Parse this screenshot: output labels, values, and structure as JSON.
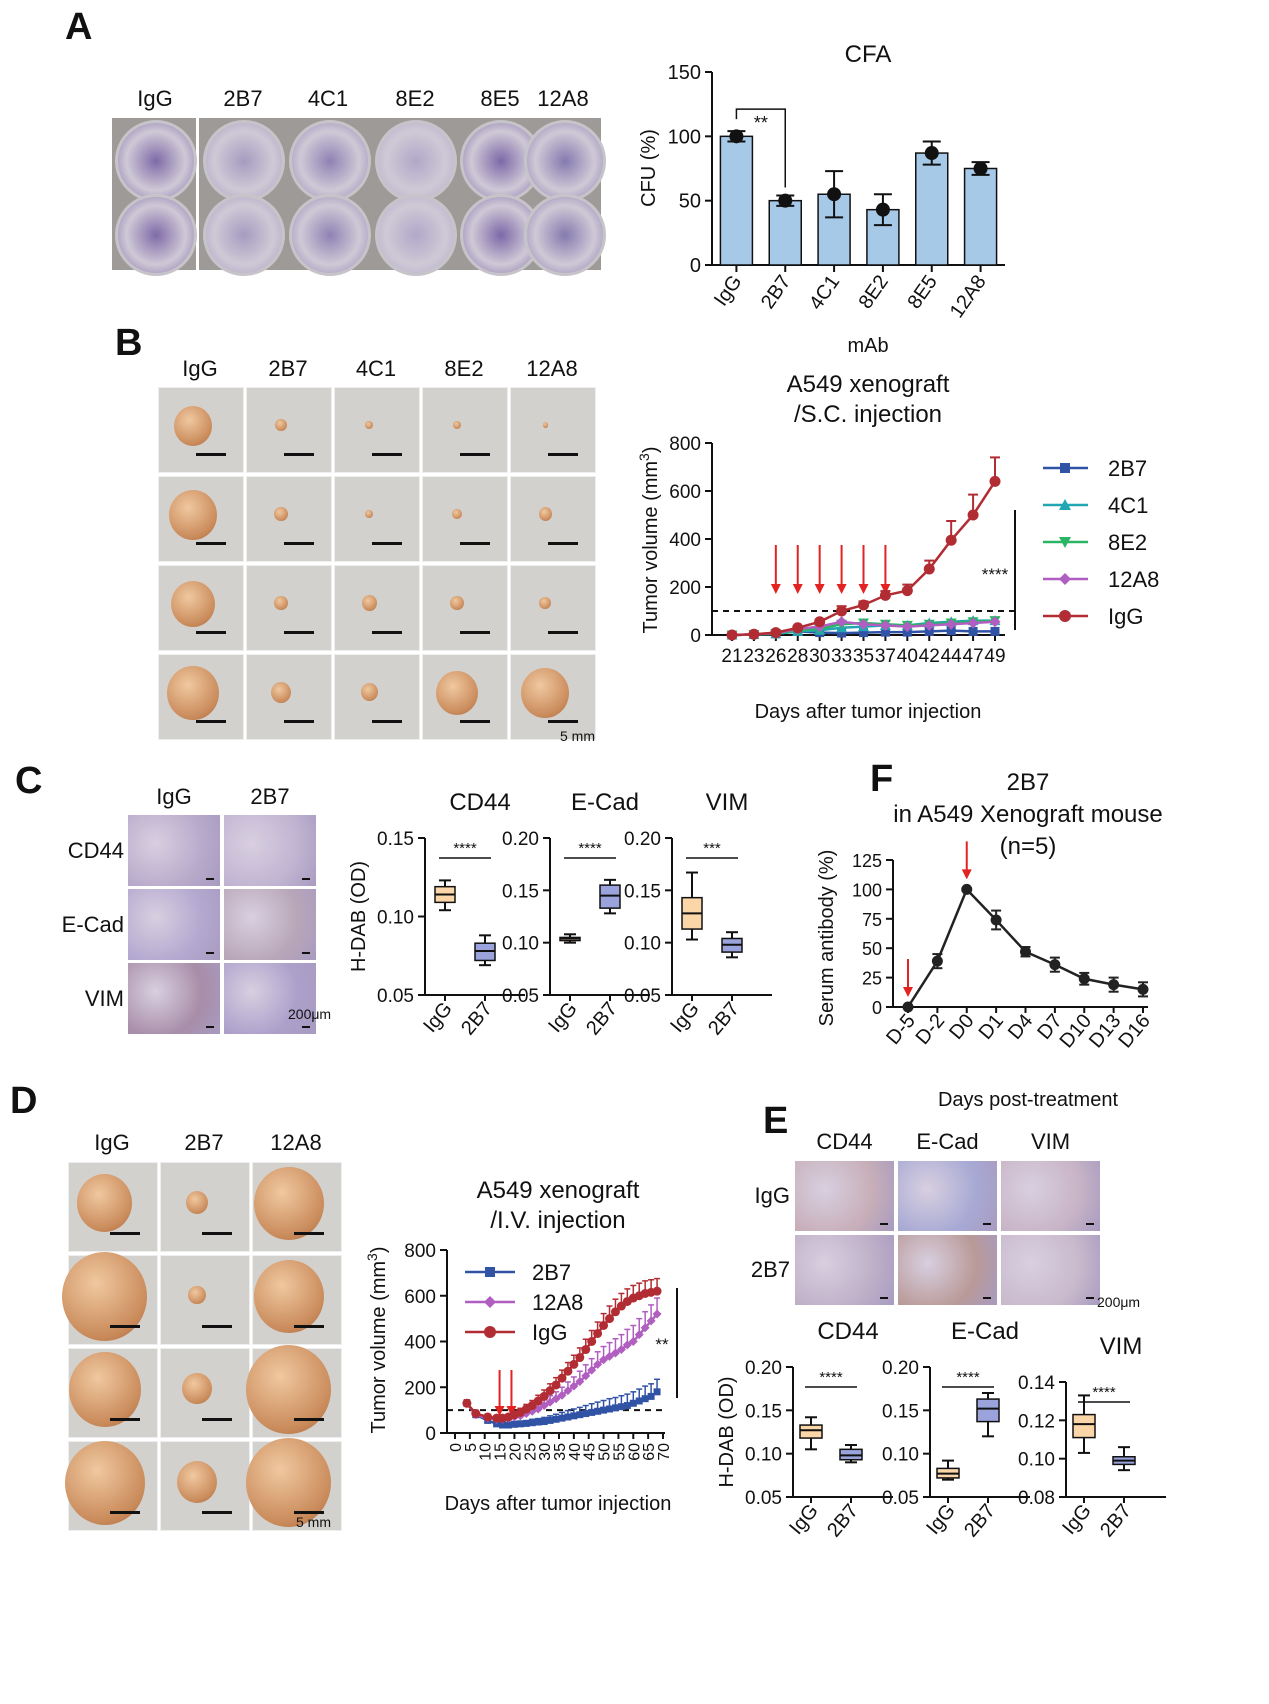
{
  "panels": {
    "A": "A",
    "B": "B",
    "C": "C",
    "D": "D",
    "E": "E",
    "F": "F"
  },
  "panelA": {
    "plate_labels": [
      "IgG",
      "2B7",
      "4C1",
      "8E2",
      "8E5",
      "12A8"
    ],
    "well_colors": [
      "#7f6aa8",
      "#a69cc0",
      "#8f82b4",
      "#b1a8c8",
      "#7c68a8",
      "#857aaf"
    ]
  },
  "panelB": {
    "column_labels": [
      "IgG",
      "2B7",
      "4C1",
      "8E2",
      "12A8"
    ],
    "scale_label": "5 mm",
    "tumor_sizes": [
      [
        38,
        12,
        8,
        8,
        5
      ],
      [
        48,
        14,
        8,
        10,
        13
      ],
      [
        44,
        14,
        15,
        14,
        12
      ],
      [
        52,
        20,
        17,
        42,
        48
      ]
    ]
  },
  "panelC": {
    "column_labels": [
      "IgG",
      "2B7"
    ],
    "row_labels": [
      "CD44",
      "E-Cad",
      "VIM"
    ],
    "scale_label": "200μm"
  },
  "panelD": {
    "column_labels": [
      "IgG",
      "2B7",
      "12A8"
    ],
    "scale_label": "5 mm",
    "tumor_sizes": [
      [
        55,
        22,
        70
      ],
      [
        85,
        18,
        70
      ],
      [
        72,
        30,
        85
      ],
      [
        80,
        40,
        85
      ]
    ]
  },
  "panelE": {
    "column_labels": [
      "CD44",
      "E-Cad",
      "VIM"
    ],
    "row_labels": [
      "IgG",
      "2B7"
    ],
    "scale_label": "200μm"
  },
  "chart_data": [
    {
      "id": "cfa",
      "type": "bar",
      "title": "CFA",
      "xlabel": "mAb",
      "ylabel": "CFU (%)",
      "categories": [
        "IgG",
        "2B7",
        "4C1",
        "8E2",
        "8E5",
        "12A8"
      ],
      "values": [
        100,
        50,
        55,
        43,
        87,
        75
      ],
      "errors": [
        4,
        4,
        18,
        12,
        9,
        5
      ],
      "ylim": [
        0,
        150
      ],
      "yticks": [
        0,
        50,
        100,
        150
      ],
      "bar_color": "#a7c9e8",
      "annotation": {
        "text": "**",
        "between": [
          "IgG",
          "2B7"
        ]
      }
    },
    {
      "id": "sc",
      "type": "line",
      "title": "A549 xenograft\n/S.C. injection",
      "title_lines": [
        "A549 xenograft",
        "/S.C. injection"
      ],
      "xlabel": "Days after tumor injection",
      "ylabel": "Tumor volume (mm",
      "ylabel_sup": "3",
      "ylabel_end": ")",
      "x": [
        "21",
        "23",
        "26",
        "28",
        "30",
        "33",
        "35",
        "37",
        "40",
        "42",
        "44",
        "47",
        "49"
      ],
      "ylim": [
        0,
        800
      ],
      "yticks": [
        0,
        200,
        400,
        600,
        800
      ],
      "dashed_line": 100,
      "arrows_at": [
        "26",
        "28",
        "30",
        "33",
        "35",
        "37"
      ],
      "significance": "****",
      "series": [
        {
          "name": "2B7",
          "color": "#3153a6",
          "marker": "square",
          "values": [
            0,
            2,
            5,
            15,
            10,
            8,
            10,
            12,
            12,
            15,
            18,
            15,
            15
          ]
        },
        {
          "name": "4C1",
          "color": "#22a6b3",
          "marker": "triangle",
          "values": [
            0,
            2,
            5,
            15,
            20,
            30,
            35,
            40,
            40,
            50,
            55,
            60,
            60
          ]
        },
        {
          "name": "8E2",
          "color": "#2ab565",
          "marker": "triangle-down",
          "values": [
            0,
            2,
            5,
            20,
            25,
            45,
            50,
            45,
            40,
            45,
            50,
            55,
            60
          ]
        },
        {
          "name": "12A8",
          "color": "#b05ec0",
          "marker": "diamond",
          "values": [
            0,
            2,
            8,
            25,
            35,
            55,
            45,
            40,
            35,
            40,
            45,
            50,
            55
          ]
        },
        {
          "name": "IgG",
          "color": "#b22d33",
          "marker": "circle",
          "values": [
            0,
            3,
            10,
            30,
            55,
            100,
            125,
            165,
            185,
            275,
            395,
            500,
            640
          ],
          "errors": [
            2,
            3,
            4,
            6,
            10,
            20,
            15,
            18,
            25,
            35,
            80,
            85,
            100
          ]
        }
      ]
    },
    {
      "id": "c_cd44",
      "type": "box",
      "title": "CD44",
      "ylabel": "H-DAB (OD)",
      "ylim": [
        0.05,
        0.15
      ],
      "yticks": [
        "0.05",
        "0.10",
        "0.15"
      ],
      "categories": [
        "IgG",
        "2B7"
      ],
      "boxes": [
        {
          "min": 0.104,
          "q1": 0.109,
          "median": 0.114,
          "q3": 0.119,
          "max": 0.123,
          "color": "#fbd6a8"
        },
        {
          "min": 0.069,
          "q1": 0.072,
          "median": 0.078,
          "q3": 0.083,
          "max": 0.088,
          "color": "#9aa3db"
        }
      ],
      "significance": "****"
    },
    {
      "id": "c_ecad",
      "type": "box",
      "title": "E-Cad",
      "ylabel": "",
      "ylim": [
        0.05,
        0.2
      ],
      "yticks": [
        "0.05",
        "0.10",
        "0.15",
        "0.20"
      ],
      "categories": [
        "IgG",
        "2B7"
      ],
      "boxes": [
        {
          "min": 0.1,
          "q1": 0.102,
          "median": 0.104,
          "q3": 0.105,
          "max": 0.108,
          "color": "#fbd6a8"
        },
        {
          "min": 0.128,
          "q1": 0.133,
          "median": 0.145,
          "q3": 0.155,
          "max": 0.16,
          "color": "#9aa3db"
        }
      ],
      "significance": "****"
    },
    {
      "id": "c_vim",
      "type": "box",
      "title": "VIM",
      "ylabel": "",
      "ylim": [
        0.05,
        0.2
      ],
      "yticks": [
        "0.05",
        "0.10",
        "0.15",
        "0.20"
      ],
      "categories": [
        "IgG",
        "2B7"
      ],
      "boxes": [
        {
          "min": 0.103,
          "q1": 0.113,
          "median": 0.128,
          "q3": 0.143,
          "max": 0.167,
          "color": "#fbd6a8"
        },
        {
          "min": 0.086,
          "q1": 0.091,
          "median": 0.098,
          "q3": 0.104,
          "max": 0.11,
          "color": "#9aa3db"
        }
      ],
      "significance": "***"
    },
    {
      "id": "f",
      "type": "line",
      "title_lines": [
        "2B7",
        "in A549 Xenograft mouse",
        "(n=5)"
      ],
      "xlabel": "Days post-treatment",
      "ylabel": "Serum antibody (%)",
      "x": [
        "D-5",
        "D-2",
        "D0",
        "D1",
        "D4",
        "D7",
        "D10",
        "D13",
        "D16"
      ],
      "ylim": [
        0,
        125
      ],
      "yticks": [
        0,
        25,
        50,
        75,
        100,
        125
      ],
      "arrows_at": [
        "D-5",
        "D0"
      ],
      "series": [
        {
          "name": "2B7",
          "color": "#222222",
          "values": [
            0,
            39,
            100,
            74,
            47,
            36,
            24,
            19,
            15
          ],
          "errors": [
            1,
            6,
            1,
            8,
            4,
            6,
            5,
            6,
            6
          ]
        }
      ]
    },
    {
      "id": "iv",
      "type": "line",
      "title_lines": [
        "A549 xenograft",
        "/I.V. injection"
      ],
      "xlabel": "Days after tumor injection",
      "ylabel": "Tumor volume (mm",
      "ylabel_sup": "3",
      "ylabel_end": ")",
      "xlim": [
        0,
        70
      ],
      "xticks": [
        0,
        5,
        10,
        15,
        20,
        25,
        30,
        35,
        40,
        45,
        50,
        55,
        60,
        65,
        70
      ],
      "ylim": [
        0,
        800
      ],
      "yticks": [
        0,
        200,
        400,
        600,
        800
      ],
      "dashed_line": 100,
      "arrows_at": [
        15,
        19
      ],
      "significance": "**",
      "series": [
        {
          "name": "2B7",
          "color": "#3153a6",
          "marker": "square",
          "x": [
            4,
            7,
            11,
            14,
            16,
            18,
            20,
            22,
            24,
            26,
            28,
            30,
            32,
            34,
            36,
            38,
            40,
            42,
            44,
            46,
            48,
            50,
            52,
            54,
            56,
            58,
            60,
            62,
            64,
            66,
            68
          ],
          "values": [
            130,
            80,
            55,
            40,
            35,
            35,
            38,
            40,
            42,
            45,
            48,
            50,
            55,
            60,
            65,
            70,
            75,
            80,
            85,
            90,
            95,
            100,
            105,
            110,
            115,
            120,
            130,
            140,
            150,
            160,
            180
          ],
          "errors": [
            15,
            15,
            10,
            10,
            10,
            10,
            12,
            12,
            12,
            15,
            15,
            18,
            20,
            22,
            25,
            28,
            30,
            32,
            35,
            38,
            40,
            42,
            45,
            45,
            48,
            50,
            50,
            52,
            55,
            55,
            55
          ]
        },
        {
          "name": "12A8",
          "color": "#b05ec0",
          "marker": "diamond",
          "x": [
            4,
            7,
            11,
            14,
            16,
            18,
            20,
            22,
            24,
            26,
            28,
            30,
            32,
            34,
            36,
            38,
            40,
            42,
            44,
            46,
            48,
            50,
            52,
            54,
            56,
            58,
            60,
            62,
            64,
            66,
            68
          ],
          "values": [
            130,
            80,
            65,
            60,
            60,
            65,
            70,
            75,
            85,
            95,
            105,
            120,
            135,
            150,
            165,
            185,
            205,
            225,
            250,
            275,
            300,
            320,
            335,
            350,
            365,
            385,
            400,
            430,
            460,
            490,
            520
          ],
          "errors": [
            15,
            15,
            10,
            10,
            10,
            12,
            12,
            15,
            18,
            20,
            22,
            25,
            28,
            30,
            35,
            38,
            40,
            45,
            48,
            50,
            55,
            58,
            60,
            62,
            65,
            68,
            70,
            70,
            70,
            70,
            70
          ]
        },
        {
          "name": "IgG",
          "color": "#b22d33",
          "marker": "circle",
          "x": [
            4,
            7,
            11,
            14,
            16,
            18,
            20,
            22,
            24,
            26,
            28,
            30,
            32,
            34,
            36,
            38,
            40,
            42,
            44,
            46,
            48,
            50,
            52,
            54,
            56,
            58,
            60,
            62,
            64,
            66,
            68
          ],
          "values": [
            130,
            85,
            70,
            65,
            65,
            70,
            80,
            90,
            105,
            120,
            140,
            160,
            185,
            210,
            240,
            270,
            300,
            330,
            365,
            400,
            435,
            470,
            500,
            530,
            555,
            575,
            590,
            600,
            610,
            615,
            620
          ],
          "errors": [
            15,
            15,
            10,
            10,
            10,
            12,
            15,
            18,
            20,
            22,
            25,
            28,
            30,
            32,
            35,
            38,
            40,
            42,
            45,
            48,
            50,
            52,
            55,
            55,
            55,
            55,
            55,
            55,
            55,
            55,
            55
          ]
        }
      ]
    },
    {
      "id": "e_cd44",
      "type": "box",
      "title": "CD44",
      "ylabel": "H-DAB (OD)",
      "ylim": [
        0.05,
        0.2
      ],
      "yticks": [
        "0.05",
        "0.10",
        "0.15",
        "0.20"
      ],
      "categories": [
        "IgG",
        "2B7"
      ],
      "boxes": [
        {
          "min": 0.105,
          "q1": 0.118,
          "median": 0.127,
          "q3": 0.133,
          "max": 0.142,
          "color": "#fbd6a8"
        },
        {
          "min": 0.09,
          "q1": 0.093,
          "median": 0.098,
          "q3": 0.105,
          "max": 0.11,
          "color": "#9aa3db"
        }
      ],
      "significance": "****"
    },
    {
      "id": "e_ecad",
      "type": "box",
      "title": "E-Cad",
      "ylabel": "",
      "ylim": [
        0.05,
        0.2
      ],
      "yticks": [
        "0.05",
        "0.10",
        "0.15",
        "0.20"
      ],
      "categories": [
        "IgG",
        "2B7"
      ],
      "boxes": [
        {
          "min": 0.07,
          "q1": 0.072,
          "median": 0.077,
          "q3": 0.083,
          "max": 0.092,
          "color": "#fbd6a8"
        },
        {
          "min": 0.12,
          "q1": 0.137,
          "median": 0.152,
          "q3": 0.163,
          "max": 0.17,
          "color": "#9aa3db"
        }
      ],
      "significance": "****"
    },
    {
      "id": "e_vim",
      "type": "box",
      "title": "VIM",
      "ylabel": "",
      "ylim": [
        0.08,
        0.14
      ],
      "yticks": [
        "0.08",
        "0.10",
        "0.12",
        "0.14"
      ],
      "categories": [
        "IgG",
        "2B7"
      ],
      "boxes": [
        {
          "min": 0.103,
          "q1": 0.111,
          "median": 0.118,
          "q3": 0.123,
          "max": 0.133,
          "color": "#fbd6a8"
        },
        {
          "min": 0.094,
          "q1": 0.097,
          "median": 0.099,
          "q3": 0.101,
          "max": 0.106,
          "color": "#9aa3db"
        }
      ],
      "significance": "****"
    }
  ]
}
